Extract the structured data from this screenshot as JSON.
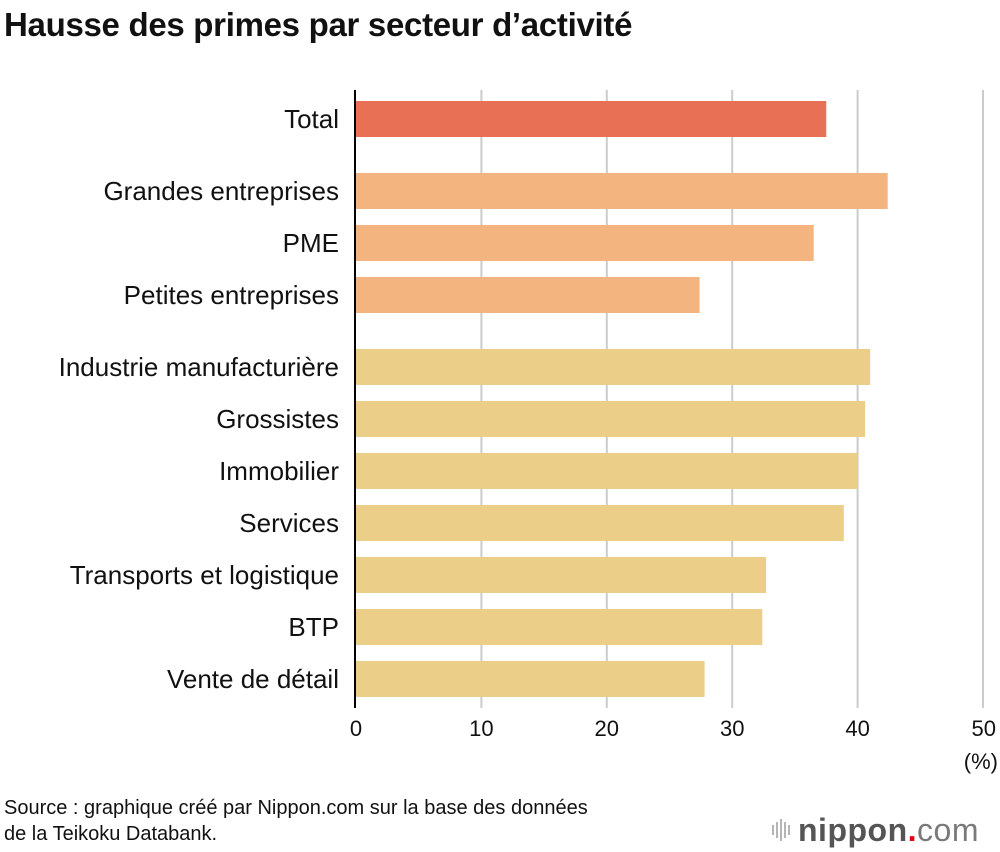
{
  "chart_data": {
    "type": "bar",
    "orientation": "horizontal",
    "title": "Hausse des primes par secteur d’activité",
    "xlabel": "",
    "ylabel": "",
    "unit_label": "(%)",
    "xlim": [
      0,
      50
    ],
    "xticks": [
      0,
      10,
      20,
      30,
      40,
      50
    ],
    "grid": true,
    "groups": [
      {
        "name": "total",
        "color": "#E87054",
        "items": [
          {
            "category": "Total",
            "value": 37.5
          }
        ]
      },
      {
        "name": "size",
        "color": "#F4B480",
        "items": [
          {
            "category": "Grandes entreprises",
            "value": 42.4
          },
          {
            "category": "PME",
            "value": 36.5
          },
          {
            "category": "Petites entreprises",
            "value": 27.4
          }
        ]
      },
      {
        "name": "sector",
        "color": "#EBCF89",
        "items": [
          {
            "category": "Industrie manufacturière",
            "value": 41.0
          },
          {
            "category": "Grossistes",
            "value": 40.6
          },
          {
            "category": "Immobilier",
            "value": 40.0
          },
          {
            "category": "Services",
            "value": 38.9
          },
          {
            "category": "Transports et logistique",
            "value": 32.7
          },
          {
            "category": "BTP",
            "value": 32.4
          },
          {
            "category": "Vente de détail",
            "value": 27.8
          }
        ]
      }
    ]
  },
  "footer": {
    "source_line1": "Source : graphique créé par Nippon.com sur la base des données",
    "source_line2": "de la Teikoku Databank."
  },
  "logo": {
    "brand": "nippon",
    "dot": ".",
    "tld": "com"
  }
}
